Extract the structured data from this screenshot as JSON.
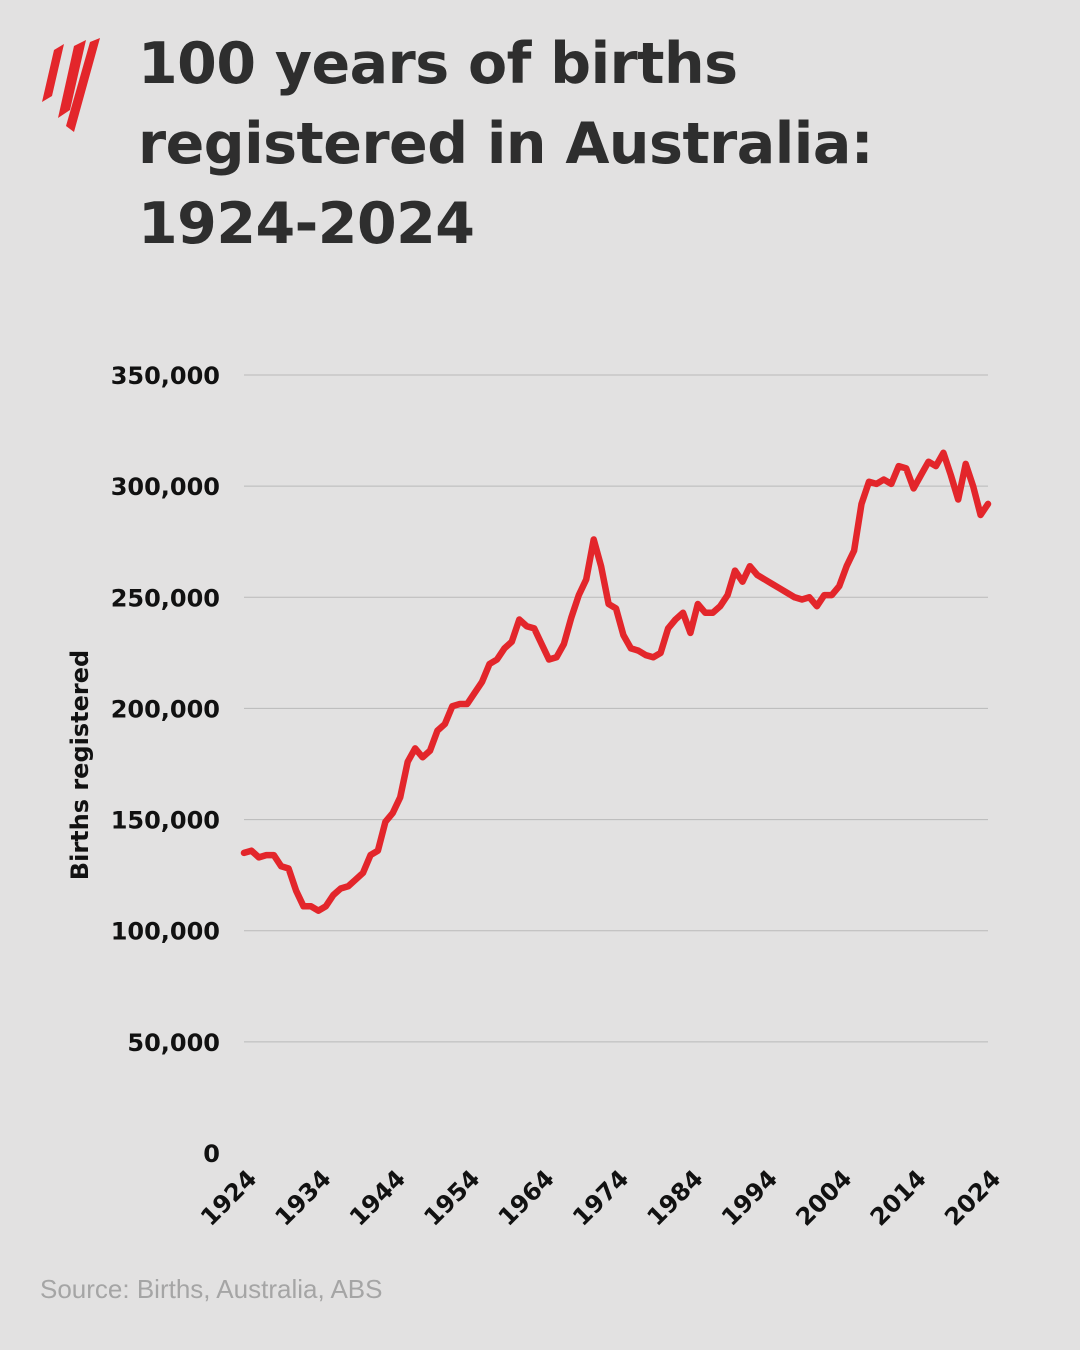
{
  "header": {
    "title_lines": [
      "100 years of births",
      "registered in Australia:",
      "1924-2024"
    ]
  },
  "brand": {
    "logo_icon": "sbs-news-logo-icon",
    "accent_color": "#e3262b"
  },
  "footer": {
    "source": "Source: Births, Australia, ABS"
  },
  "chart_data": {
    "type": "line",
    "title": "100 years of births registered in Australia: 1924-2024",
    "xlabel": "",
    "ylabel": "Births registered",
    "xlim": [
      1924,
      2024
    ],
    "ylim": [
      0,
      350000
    ],
    "y_ticks": [
      0,
      50000,
      100000,
      150000,
      200000,
      250000,
      300000,
      350000
    ],
    "y_tick_labels": [
      "0",
      "50,000",
      "100,000",
      "150,000",
      "200,000",
      "250,000",
      "300,000",
      "350,000"
    ],
    "x_ticks": [
      1924,
      1934,
      1944,
      1954,
      1964,
      1974,
      1984,
      1994,
      2004,
      2014,
      2024
    ],
    "x_tick_labels": [
      "1924",
      "1934",
      "1944",
      "1954",
      "1964",
      "1974",
      "1984",
      "1994",
      "2004",
      "2014",
      "2024"
    ],
    "grid": true,
    "line_color": "#e3262b",
    "series": [
      {
        "name": "Births registered",
        "x": [
          1924,
          1925,
          1926,
          1927,
          1928,
          1929,
          1930,
          1931,
          1932,
          1933,
          1934,
          1935,
          1936,
          1937,
          1938,
          1939,
          1940,
          1941,
          1942,
          1943,
          1944,
          1945,
          1946,
          1947,
          1948,
          1949,
          1950,
          1951,
          1952,
          1953,
          1954,
          1955,
          1956,
          1957,
          1958,
          1959,
          1960,
          1961,
          1962,
          1963,
          1964,
          1965,
          1966,
          1967,
          1968,
          1969,
          1970,
          1971,
          1972,
          1973,
          1974,
          1975,
          1976,
          1977,
          1978,
          1979,
          1980,
          1981,
          1982,
          1983,
          1984,
          1985,
          1986,
          1987,
          1988,
          1989,
          1990,
          1991,
          1992,
          1993,
          1994,
          1995,
          1996,
          1997,
          1998,
          1999,
          2000,
          2001,
          2002,
          2003,
          2004,
          2005,
          2006,
          2007,
          2008,
          2009,
          2010,
          2011,
          2012,
          2013,
          2014,
          2015,
          2016,
          2017,
          2018,
          2019,
          2020,
          2021,
          2022,
          2023,
          2024
        ],
        "values": [
          135000,
          136000,
          133000,
          134000,
          134000,
          129000,
          128000,
          118000,
          111000,
          111000,
          109000,
          111000,
          116000,
          119000,
          120000,
          123000,
          126000,
          134000,
          136000,
          149000,
          153000,
          160000,
          176000,
          182000,
          178000,
          181000,
          190000,
          193000,
          201000,
          202000,
          202000,
          207000,
          212000,
          220000,
          222000,
          227000,
          230000,
          240000,
          237000,
          236000,
          229000,
          222000,
          223000,
          229000,
          241000,
          251000,
          258000,
          276000,
          264000,
          247000,
          245000,
          233000,
          227000,
          226000,
          224000,
          223000,
          225000,
          236000,
          240000,
          243000,
          234000,
          247000,
          243000,
          243000,
          246000,
          251000,
          262000,
          257000,
          264000,
          260000,
          258000,
          256000,
          254000,
          252000,
          250000,
          249000,
          250000,
          246000,
          251000,
          251000,
          255000,
          264000,
          271000,
          292000,
          302000,
          301000,
          303000,
          301000,
          309000,
          308000,
          299000,
          305000,
          311000,
          309000,
          315000,
          305000,
          294000,
          310000,
          300000,
          287000,
          292000
        ]
      }
    ]
  }
}
